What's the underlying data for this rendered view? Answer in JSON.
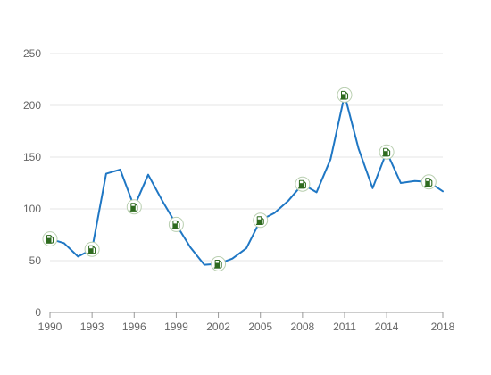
{
  "chart_data": {
    "type": "line",
    "title": "",
    "xlabel": "",
    "ylabel": "",
    "xlim": [
      1990,
      2018
    ],
    "ylim": [
      0,
      250
    ],
    "x_ticks": [
      "1990",
      "1993",
      "1996",
      "1999",
      "2002",
      "2005",
      "2008",
      "2011",
      "2014",
      "2018"
    ],
    "y_ticks": [
      "0",
      "50",
      "100",
      "150",
      "200",
      "250"
    ],
    "grid": "horizontal",
    "legend": "none",
    "series": [
      {
        "color": "#1f77c4",
        "x": [
          1990,
          1991,
          1992,
          1993,
          1994,
          1995,
          1996,
          1997,
          1998,
          1999,
          2000,
          2001,
          2002,
          2003,
          2004,
          2005,
          2006,
          2007,
          2008,
          2009,
          2010,
          2011,
          2012,
          2013,
          2014,
          2015,
          2016,
          2017,
          2018
        ],
        "values": [
          71,
          67,
          54,
          61,
          134,
          138,
          102,
          133,
          108,
          85,
          63,
          46,
          47,
          52,
          62,
          89,
          96,
          108,
          124,
          116,
          148,
          210,
          158,
          120,
          155,
          125,
          127,
          126,
          117
        ]
      }
    ],
    "markers": {
      "icon": "fuel-pump-icon",
      "color": "#2e6b1f",
      "x": [
        1990,
        1993,
        1996,
        1999,
        2002,
        2005,
        2008,
        2011,
        2014,
        2017
      ]
    }
  }
}
